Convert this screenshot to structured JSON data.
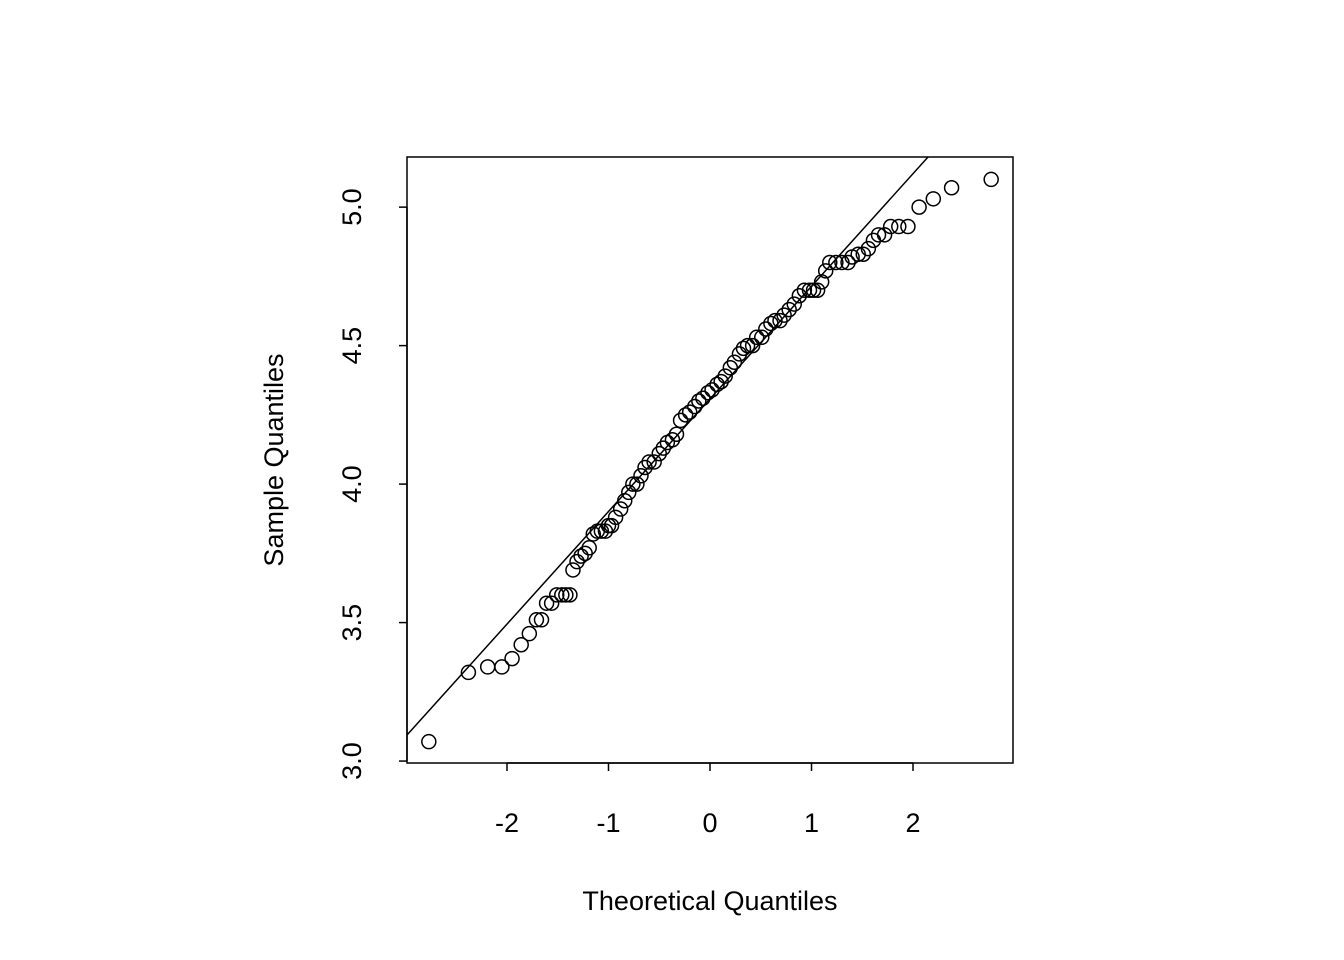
{
  "chart_data": {
    "type": "scatter",
    "xlabel": "Theoretical Quantiles",
    "ylabel": "Sample Quantiles",
    "x": [
      -2.77,
      -2.38,
      -2.19,
      -2.05,
      -1.95,
      -1.86,
      -1.78,
      -1.71,
      -1.66,
      -1.61,
      -1.56,
      -1.51,
      -1.46,
      -1.42,
      -1.38,
      -1.35,
      -1.31,
      -1.27,
      -1.23,
      -1.19,
      -1.15,
      -1.11,
      -1.07,
      -1.03,
      -1.0,
      -0.97,
      -0.93,
      -0.88,
      -0.84,
      -0.8,
      -0.76,
      -0.72,
      -0.68,
      -0.64,
      -0.6,
      -0.55,
      -0.5,
      -0.46,
      -0.42,
      -0.37,
      -0.33,
      -0.29,
      -0.24,
      -0.2,
      -0.15,
      -0.11,
      -0.07,
      -0.02,
      0.02,
      0.07,
      0.11,
      0.15,
      0.2,
      0.24,
      0.29,
      0.33,
      0.37,
      0.42,
      0.46,
      0.51,
      0.55,
      0.6,
      0.64,
      0.69,
      0.73,
      0.78,
      0.83,
      0.88,
      0.93,
      0.98,
      1.02,
      1.06,
      1.1,
      1.14,
      1.18,
      1.24,
      1.3,
      1.36,
      1.4,
      1.46,
      1.51,
      1.56,
      1.61,
      1.66,
      1.72,
      1.78,
      1.86,
      1.95,
      2.06,
      2.2,
      2.38,
      2.77
    ],
    "values": [
      3.07,
      3.32,
      3.34,
      3.34,
      3.37,
      3.42,
      3.46,
      3.51,
      3.51,
      3.57,
      3.57,
      3.6,
      3.6,
      3.6,
      3.6,
      3.69,
      3.72,
      3.74,
      3.75,
      3.77,
      3.82,
      3.83,
      3.83,
      3.83,
      3.85,
      3.85,
      3.88,
      3.91,
      3.94,
      3.97,
      4.0,
      4.0,
      4.03,
      4.06,
      4.08,
      4.08,
      4.11,
      4.13,
      4.15,
      4.16,
      4.18,
      4.23,
      4.25,
      4.26,
      4.28,
      4.3,
      4.31,
      4.33,
      4.34,
      4.36,
      4.37,
      4.39,
      4.42,
      4.44,
      4.47,
      4.49,
      4.5,
      4.5,
      4.53,
      4.53,
      4.56,
      4.58,
      4.59,
      4.59,
      4.61,
      4.63,
      4.65,
      4.68,
      4.7,
      4.7,
      4.7,
      4.7,
      4.73,
      4.77,
      4.8,
      4.8,
      4.8,
      4.8,
      4.82,
      4.83,
      4.83,
      4.85,
      4.88,
      4.9,
      4.9,
      4.93,
      4.93,
      4.93,
      5.0,
      5.03,
      5.07,
      5.1
    ],
    "reference_line": {
      "x": [
        -2.985,
        2.148
      ],
      "y": [
        3.094,
        5.181
      ]
    },
    "color": "#000000",
    "xlim": [
      -2.985,
      2.985
    ],
    "xticks": [
      -2,
      -1,
      0,
      1,
      2
    ],
    "ylim": [
      2.993,
      5.181
    ],
    "yticks": [
      {
        "value": 3,
        "label": "3.0"
      },
      {
        "value": 3.5,
        "label": "3.5"
      },
      {
        "value": 4,
        "label": "4.0"
      },
      {
        "value": 4.5,
        "label": "4.5"
      },
      {
        "value": 5,
        "label": "5.0"
      }
    ]
  }
}
